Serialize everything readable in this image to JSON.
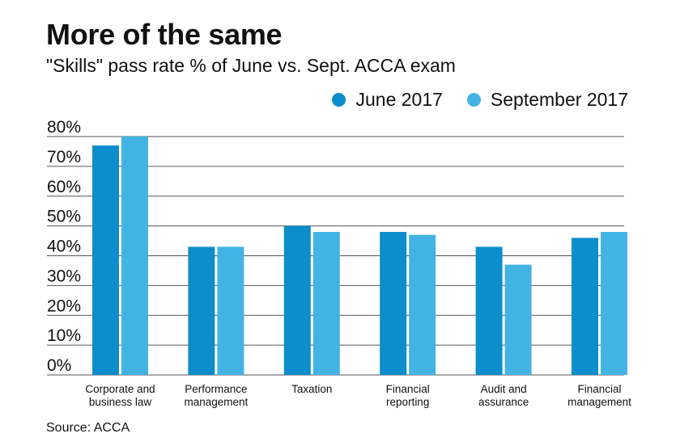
{
  "header": {
    "title": "More of the same",
    "subtitle": "\"Skills\" pass rate % of June vs. Sept. ACCA exam"
  },
  "footer": {
    "source": "Source: ACCA"
  },
  "colors": {
    "june": "#0b8ecb",
    "september": "#42b4e4",
    "grid": "#555555"
  },
  "chart_data": {
    "type": "bar",
    "categories": [
      [
        "Corporate and",
        "business law"
      ],
      [
        "Performance",
        "management"
      ],
      [
        "Taxation"
      ],
      [
        "Financial",
        "reporting"
      ],
      [
        "Audit and",
        "assurance"
      ],
      [
        "Financial",
        "management"
      ]
    ],
    "series": [
      {
        "name": "June 2017",
        "values": [
          77,
          43,
          50,
          48,
          43,
          46
        ]
      },
      {
        "name": "September 2017",
        "values": [
          80,
          43,
          48,
          47,
          37,
          48
        ]
      }
    ],
    "ylim": [
      0,
      80
    ],
    "yticks": [
      0,
      10,
      20,
      30,
      40,
      50,
      60,
      70,
      80
    ],
    "ytick_labels": [
      "0%",
      "10%",
      "20%",
      "30%",
      "40%",
      "50%",
      "60%",
      "70%",
      "80%"
    ],
    "grid": true,
    "legend_position": "top-right"
  }
}
